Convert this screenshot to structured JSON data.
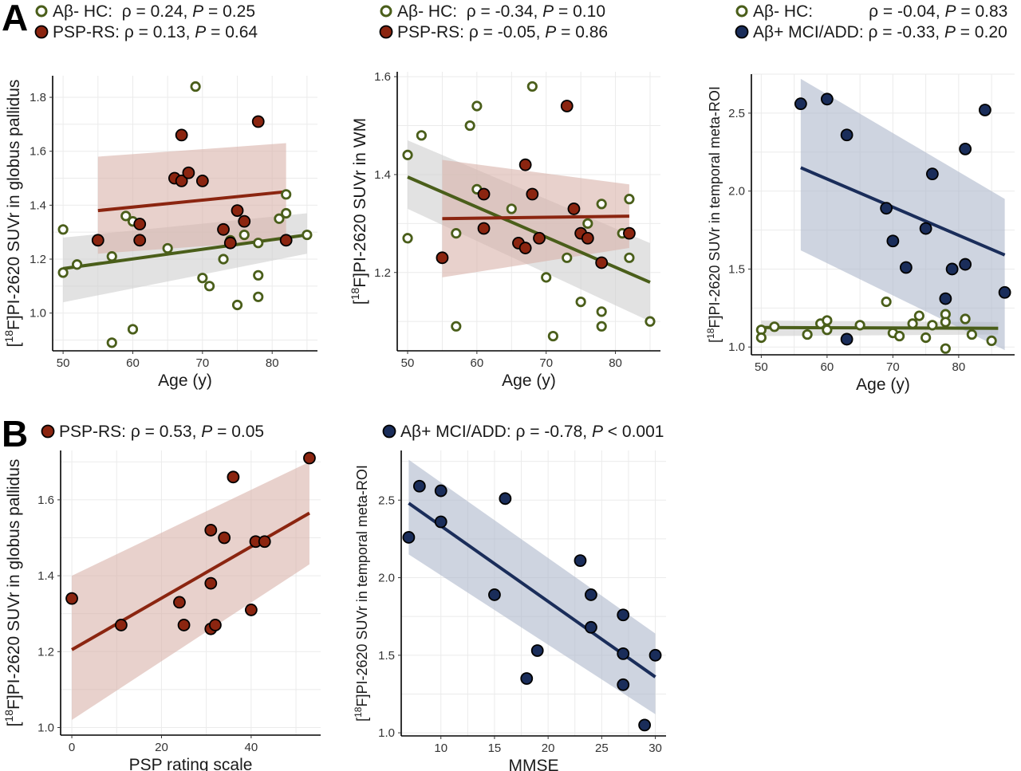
{
  "figure": {
    "panel_labels": [
      "A",
      "B"
    ],
    "colors": {
      "hc": "#4a5e1a",
      "psp": "#8b2510",
      "ad": "#1a2d5a",
      "hc_band": "#cfcfcf",
      "psp_band": "#d9b3aa",
      "ad_band": "#aeb8cc",
      "grid": "#ebebeb"
    }
  },
  "chart_data": [
    {
      "id": "A1",
      "type": "scatter",
      "xlabel": "Age (y)",
      "ylabel_pre": "[",
      "ylabel_sup": "18",
      "ylabel_post": "F]PI-2620 SUVr in globus pallidus",
      "xlim": [
        48.5,
        86.5
      ],
      "ylim": [
        0.86,
        1.88
      ],
      "xticks": [
        50,
        60,
        70,
        80
      ],
      "yticks": [
        1.0,
        1.2,
        1.4,
        1.6,
        1.8
      ],
      "ytick_labels": [
        "1.0",
        "1.2",
        "1.4",
        "1.6",
        "1.8"
      ],
      "legend": [
        {
          "label": "Aβ- HC:  ρ = 0.24, ",
          "p_symbol": "P",
          "p_text": " = 0.25",
          "style": "open",
          "color": "hc"
        },
        {
          "label": "PSP-RS: ρ = 0.13, ",
          "p_symbol": "P",
          "p_text": " = 0.64",
          "style": "filled",
          "color": "psp"
        }
      ],
      "bands": [
        {
          "color": "hc_band",
          "x": [
            50,
            85
          ],
          "lo": [
            1.04,
            1.22
          ],
          "hi": [
            1.28,
            1.37
          ]
        },
        {
          "color": "psp_band",
          "x": [
            55,
            82
          ],
          "lo": [
            1.22,
            1.27
          ],
          "hi": [
            1.58,
            1.63
          ]
        }
      ],
      "lines": [
        {
          "color": "hc",
          "x": [
            50,
            85
          ],
          "y": [
            1.165,
            1.29
          ]
        },
        {
          "color": "psp",
          "x": [
            55,
            82
          ],
          "y": [
            1.38,
            1.45
          ]
        }
      ],
      "series": [
        {
          "name": "Aβ- HC",
          "style": "open",
          "color": "hc",
          "points": [
            [
              50,
              1.31
            ],
            [
              50,
              1.15
            ],
            [
              52,
              1.18
            ],
            [
              57,
              1.21
            ],
            [
              57,
              0.89
            ],
            [
              59,
              1.36
            ],
            [
              60,
              1.34
            ],
            [
              60,
              0.94
            ],
            [
              65,
              1.24
            ],
            [
              69,
              1.84
            ],
            [
              70,
              1.13
            ],
            [
              71,
              1.1
            ],
            [
              73,
              1.2
            ],
            [
              74,
              1.27
            ],
            [
              75,
              1.03
            ],
            [
              76,
              1.29
            ],
            [
              78,
              1.26
            ],
            [
              78,
              1.14
            ],
            [
              78,
              1.06
            ],
            [
              81,
              1.35
            ],
            [
              82,
              1.37
            ],
            [
              82,
              1.44
            ],
            [
              85,
              1.29
            ]
          ]
        },
        {
          "name": "PSP-RS",
          "style": "filled",
          "color": "psp",
          "points": [
            [
              55,
              1.27
            ],
            [
              61,
              1.33
            ],
            [
              61,
              1.27
            ],
            [
              66,
              1.5
            ],
            [
              67,
              1.49
            ],
            [
              67,
              1.66
            ],
            [
              68,
              1.52
            ],
            [
              70,
              1.49
            ],
            [
              73,
              1.31
            ],
            [
              74,
              1.26
            ],
            [
              75,
              1.38
            ],
            [
              76,
              1.34
            ],
            [
              78,
              1.71
            ],
            [
              82,
              1.27
            ]
          ]
        }
      ]
    },
    {
      "id": "A2",
      "type": "scatter",
      "xlabel": "Age (y)",
      "ylabel_pre": "[",
      "ylabel_sup": "18",
      "ylabel_post": "F]PI-2620 SUVr in WM",
      "xlim": [
        48.5,
        86.5
      ],
      "ylim": [
        1.04,
        1.61
      ],
      "xticks": [
        50,
        60,
        70,
        80
      ],
      "yticks": [
        1.2,
        1.4,
        1.6
      ],
      "ytick_labels": [
        "1.2",
        "1.4",
        "1.6"
      ],
      "legend": [
        {
          "label": "Aβ- HC:  ρ = -0.34, ",
          "p_symbol": "P",
          "p_text": " = 0.10",
          "style": "open",
          "color": "hc"
        },
        {
          "label": "PSP-RS: ρ = -0.05, ",
          "p_symbol": "P",
          "p_text": " = 0.86",
          "style": "filled",
          "color": "psp"
        }
      ],
      "bands": [
        {
          "color": "hc_band",
          "x": [
            50,
            85
          ],
          "lo": [
            1.33,
            1.1
          ],
          "hi": [
            1.47,
            1.26
          ]
        },
        {
          "color": "psp_band",
          "x": [
            55,
            82
          ],
          "lo": [
            1.19,
            1.25
          ],
          "hi": [
            1.43,
            1.38
          ]
        }
      ],
      "lines": [
        {
          "color": "hc",
          "x": [
            50,
            85
          ],
          "y": [
            1.395,
            1.18
          ]
        },
        {
          "color": "psp",
          "x": [
            55,
            82
          ],
          "y": [
            1.31,
            1.315
          ]
        }
      ],
      "series": [
        {
          "name": "Aβ- HC",
          "style": "open",
          "color": "hc",
          "points": [
            [
              50,
              1.44
            ],
            [
              50,
              1.27
            ],
            [
              52,
              1.48
            ],
            [
              57,
              1.28
            ],
            [
              57,
              1.09
            ],
            [
              59,
              1.5
            ],
            [
              60,
              1.54
            ],
            [
              60,
              1.37
            ],
            [
              65,
              1.33
            ],
            [
              68,
              1.58
            ],
            [
              70,
              1.19
            ],
            [
              71,
              1.07
            ],
            [
              73,
              1.23
            ],
            [
              75,
              1.14
            ],
            [
              76,
              1.3
            ],
            [
              78,
              1.34
            ],
            [
              78,
              1.12
            ],
            [
              78,
              1.09
            ],
            [
              81,
              1.28
            ],
            [
              82,
              1.35
            ],
            [
              82,
              1.23
            ],
            [
              85,
              1.1
            ]
          ]
        },
        {
          "name": "PSP-RS",
          "style": "filled",
          "color": "psp",
          "points": [
            [
              55,
              1.23
            ],
            [
              61,
              1.36
            ],
            [
              61,
              1.29
            ],
            [
              66,
              1.26
            ],
            [
              67,
              1.42
            ],
            [
              67,
              1.25
            ],
            [
              68,
              1.36
            ],
            [
              69,
              1.27
            ],
            [
              73,
              1.54
            ],
            [
              74,
              1.33
            ],
            [
              75,
              1.28
            ],
            [
              76,
              1.27
            ],
            [
              78,
              1.22
            ],
            [
              82,
              1.28
            ]
          ]
        }
      ]
    },
    {
      "id": "A3",
      "type": "scatter",
      "xlabel": "Age (y)",
      "ylabel_pre": "[",
      "ylabel_sup": "18",
      "ylabel_post": "F]PI-2620 SUVr in temporal meta-ROI",
      "xlim": [
        48.5,
        88.5
      ],
      "ylim": [
        0.95,
        2.75
      ],
      "xticks": [
        50,
        60,
        70,
        80
      ],
      "yticks": [
        1.0,
        1.5,
        2.0,
        2.5
      ],
      "ytick_labels": [
        "1.0",
        "1.5",
        "2.0",
        "2.5"
      ],
      "legend": [
        {
          "label": "Aβ- HC:            ρ = -0.04, ",
          "p_symbol": "P",
          "p_text": " = 0.83",
          "style": "open",
          "color": "hc"
        },
        {
          "label": "Aβ+ MCI/ADD: ρ = -0.33, ",
          "p_symbol": "P",
          "p_text": " = 0.20",
          "style": "filled",
          "color": "ad"
        }
      ],
      "bands": [
        {
          "color": "hc_band",
          "x": [
            50,
            86
          ],
          "lo": [
            1.07,
            1.08
          ],
          "hi": [
            1.17,
            1.16
          ]
        },
        {
          "color": "ad_band",
          "x": [
            56,
            87
          ],
          "lo": [
            1.62,
            0.98
          ],
          "hi": [
            2.72,
            1.95
          ]
        }
      ],
      "lines": [
        {
          "color": "hc",
          "x": [
            50,
            86
          ],
          "y": [
            1.125,
            1.12
          ]
        },
        {
          "color": "ad",
          "x": [
            56,
            87
          ],
          "y": [
            2.15,
            1.59
          ]
        }
      ],
      "series": [
        {
          "name": "Aβ- HC",
          "style": "open",
          "color": "hc",
          "points": [
            [
              50,
              1.11
            ],
            [
              50,
              1.06
            ],
            [
              52,
              1.13
            ],
            [
              57,
              1.08
            ],
            [
              59,
              1.15
            ],
            [
              60,
              1.17
            ],
            [
              60,
              1.11
            ],
            [
              65,
              1.14
            ],
            [
              69,
              1.29
            ],
            [
              70,
              1.09
            ],
            [
              71,
              1.07
            ],
            [
              73,
              1.15
            ],
            [
              74,
              1.2
            ],
            [
              75,
              1.06
            ],
            [
              76,
              1.14
            ],
            [
              78,
              1.21
            ],
            [
              78,
              1.16
            ],
            [
              78,
              0.99
            ],
            [
              81,
              1.18
            ],
            [
              82,
              1.08
            ],
            [
              85,
              1.04
            ]
          ]
        },
        {
          "name": "Aβ+ MCI/ADD",
          "style": "filled",
          "color": "ad",
          "points": [
            [
              56,
              2.56
            ],
            [
              60,
              2.59
            ],
            [
              63,
              2.36
            ],
            [
              63,
              1.05
            ],
            [
              69,
              1.89
            ],
            [
              70,
              1.68
            ],
            [
              72,
              1.51
            ],
            [
              75,
              1.76
            ],
            [
              76,
              2.11
            ],
            [
              78,
              1.31
            ],
            [
              79,
              1.5
            ],
            [
              81,
              2.27
            ],
            [
              81,
              1.53
            ],
            [
              84,
              2.52
            ],
            [
              87,
              1.35
            ]
          ]
        }
      ]
    },
    {
      "id": "B1",
      "type": "scatter",
      "xlabel": "PSP rating scale",
      "ylabel_pre": "[",
      "ylabel_sup": "18",
      "ylabel_post": "F]PI-2620 SUVr in globus pallidus",
      "xlim": [
        -2.5,
        55.5
      ],
      "ylim": [
        0.98,
        1.73
      ],
      "xticks": [
        0,
        20,
        40
      ],
      "yticks": [
        1.0,
        1.2,
        1.4,
        1.6
      ],
      "ytick_labels": [
        "1.0",
        "1.2",
        "1.4",
        "1.6"
      ],
      "legend": [
        {
          "label": "PSP-RS: ρ = 0.53, ",
          "p_symbol": "P",
          "p_text": " = 0.05",
          "style": "filled",
          "color": "psp"
        }
      ],
      "bands": [
        {
          "color": "psp_band",
          "x": [
            0,
            53
          ],
          "lo": [
            1.02,
            1.43
          ],
          "hi": [
            1.4,
            1.7
          ]
        }
      ],
      "lines": [
        {
          "color": "psp",
          "x": [
            0,
            53
          ],
          "y": [
            1.205,
            1.565
          ]
        }
      ],
      "series": [
        {
          "name": "PSP-RS",
          "style": "filled",
          "color": "psp",
          "points": [
            [
              0,
              1.34
            ],
            [
              11,
              1.27
            ],
            [
              24,
              1.33
            ],
            [
              25,
              1.27
            ],
            [
              31,
              1.52
            ],
            [
              31,
              1.38
            ],
            [
              31,
              1.26
            ],
            [
              32,
              1.27
            ],
            [
              34,
              1.5
            ],
            [
              36,
              1.66
            ],
            [
              40,
              1.31
            ],
            [
              41,
              1.49
            ],
            [
              43,
              1.49
            ],
            [
              53,
              1.71
            ]
          ]
        }
      ]
    },
    {
      "id": "B2",
      "type": "scatter",
      "xlabel": "MMSE",
      "ylabel_pre": "[",
      "ylabel_sup": "18",
      "ylabel_post": "F]PI-2620 SUVr in temporal meta-ROI",
      "xlim": [
        6.3,
        31.0
      ],
      "ylim": [
        0.98,
        2.82
      ],
      "xticks": [
        10,
        15,
        20,
        25,
        30
      ],
      "yticks": [
        1.0,
        1.5,
        2.0,
        2.5
      ],
      "ytick_labels": [
        "1.0",
        "1.5",
        "2.0",
        "2.5"
      ],
      "legend": [
        {
          "label": "Aβ+ MCI/ADD: ρ = -0.78, ",
          "p_symbol": "P",
          "p_text": " < 0.001",
          "style": "filled",
          "color": "ad"
        }
      ],
      "bands": [
        {
          "color": "ad_band",
          "x": [
            7,
            30
          ],
          "lo": [
            2.15,
            1.12
          ],
          "hi": [
            2.76,
            1.64
          ]
        }
      ],
      "lines": [
        {
          "color": "ad",
          "x": [
            7,
            30
          ],
          "y": [
            2.48,
            1.36
          ]
        }
      ],
      "series": [
        {
          "name": "Aβ+ MCI/ADD",
          "style": "filled",
          "color": "ad",
          "points": [
            [
              7,
              2.26
            ],
            [
              8,
              2.59
            ],
            [
              10,
              2.56
            ],
            [
              10,
              2.36
            ],
            [
              15,
              1.89
            ],
            [
              16,
              2.51
            ],
            [
              18,
              1.35
            ],
            [
              19,
              1.53
            ],
            [
              23,
              2.11
            ],
            [
              24,
              1.89
            ],
            [
              24,
              1.68
            ],
            [
              27,
              1.76
            ],
            [
              27,
              1.51
            ],
            [
              27,
              1.31
            ],
            [
              29,
              1.05
            ],
            [
              30,
              1.5
            ]
          ]
        }
      ]
    }
  ]
}
